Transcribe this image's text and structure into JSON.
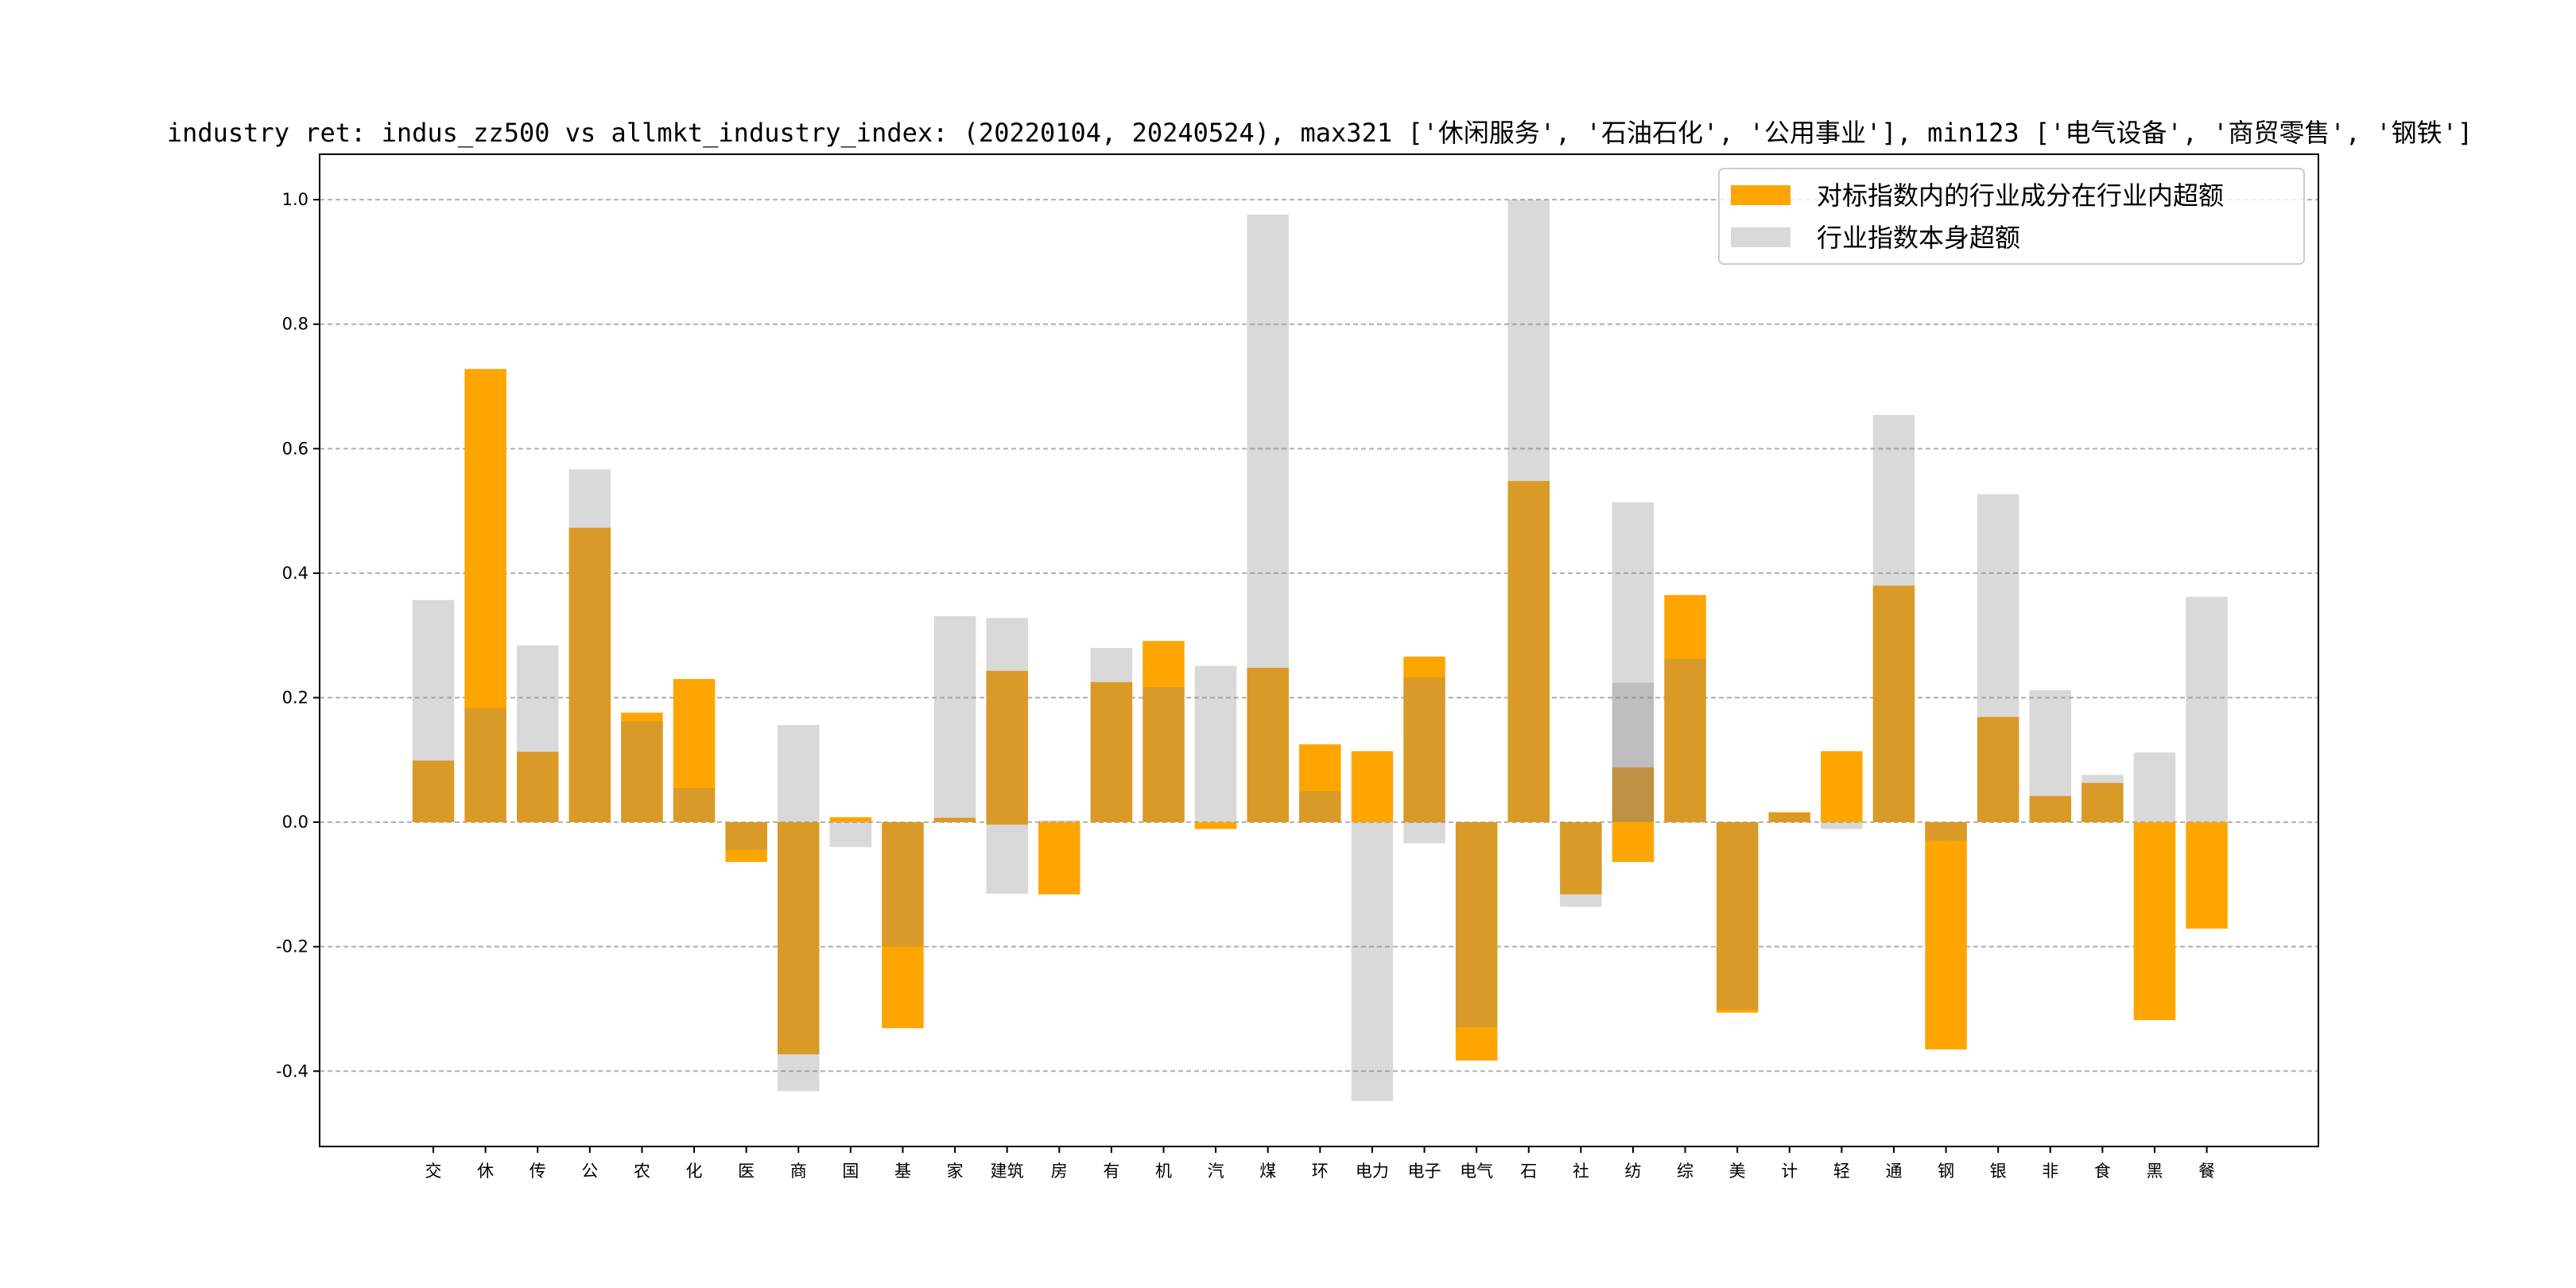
{
  "chart_data": {
    "type": "bar",
    "title": "industry ret: indus_zz500 vs allmkt_industry_index: (20220104, 20240524), max321 ['休闲服务', '石油石化', '公用事业'], min123 ['电气设备', '商贸零售', '钢铁']",
    "xlabel": "",
    "ylabel": "",
    "categories": [
      "交",
      "休",
      "传",
      "公",
      "农",
      "化",
      "医",
      "商",
      "国",
      "基",
      "家",
      "建筑",
      "房",
      "有",
      "机",
      "汽",
      "煤",
      "环",
      "电力",
      "电子",
      "电气",
      "石",
      "社",
      "纺",
      "综",
      "美",
      "计",
      "轻",
      "通",
      "钢",
      "银",
      "非",
      "食",
      "黑",
      "餐"
    ],
    "series": [
      {
        "name": "对标指数内的行业成分在行业内超额",
        "color": "#FFA500",
        "values": [
          [
            0.099
          ],
          [
            0.728
          ],
          [
            0.113
          ],
          [
            0.473
          ],
          [
            0.176
          ],
          [
            0.23
          ],
          [
            -0.064
          ],
          [
            -0.373
          ],
          [
            0.008
          ],
          [
            -0.331
          ],
          [
            0.007
          ],
          [
            0.243,
            -0.004
          ],
          [
            -0.116
          ],
          [
            0.225
          ],
          [
            0.291
          ],
          [
            -0.011
          ],
          [
            0.248
          ],
          [
            0.125
          ],
          [
            0.114
          ],
          [
            0.266
          ],
          [
            -0.383
          ],
          [
            0.548
          ],
          [
            -0.116
          ],
          [
            0.088,
            -0.064
          ],
          [
            0.365
          ],
          [
            -0.306
          ],
          [
            0.016
          ],
          [
            0.114
          ],
          [
            0.38
          ],
          [
            -0.365
          ],
          [
            0.169
          ],
          [
            0.042
          ],
          [
            0.063
          ],
          [
            -0.318
          ],
          [
            -0.171
          ]
        ]
      },
      {
        "name": "行业指数本身超额",
        "color": "#808080",
        "values": [
          [
            0.357
          ],
          [
            0.183
          ],
          [
            0.284
          ],
          [
            0.567
          ],
          [
            0.162
          ],
          [
            0.055
          ],
          [
            -0.045
          ],
          [
            0.156,
            -0.432
          ],
          [
            -0.04
          ],
          [
            -0.2
          ],
          [
            0.331
          ],
          [
            0.328,
            -0.115
          ],
          [
            0.003
          ],
          [
            0.28
          ],
          [
            0.217
          ],
          [
            0.251
          ],
          [
            0.976
          ],
          [
            0.05
          ],
          [
            -0.448
          ],
          [
            0.233,
            -0.034
          ],
          [
            -0.33
          ],
          [
            1.0
          ],
          [
            -0.136
          ],
          [
            0.514,
            0.224
          ],
          [
            0.263
          ],
          [
            -0.301
          ],
          [
            0.015
          ],
          [
            -0.011
          ],
          [
            0.654
          ],
          [
            -0.03
          ],
          [
            0.527
          ],
          [
            0.212
          ],
          [
            0.076
          ],
          [
            0.112
          ],
          [
            0.362
          ]
        ]
      }
    ],
    "yticks": [
      -0.4,
      -0.2,
      0.0,
      0.2,
      0.4,
      0.6,
      0.8,
      1.0
    ],
    "ytick_labels": [
      "-0.4",
      "-0.2",
      "0.0",
      "0.2",
      "0.4",
      "0.6",
      "0.8",
      "1.0"
    ],
    "ylim": [
      -0.521,
      1.073
    ],
    "xlim": [
      -2.18,
      36.14
    ],
    "bar_width": 0.8,
    "grid": "y-dashed",
    "legend_position": "top-right"
  }
}
